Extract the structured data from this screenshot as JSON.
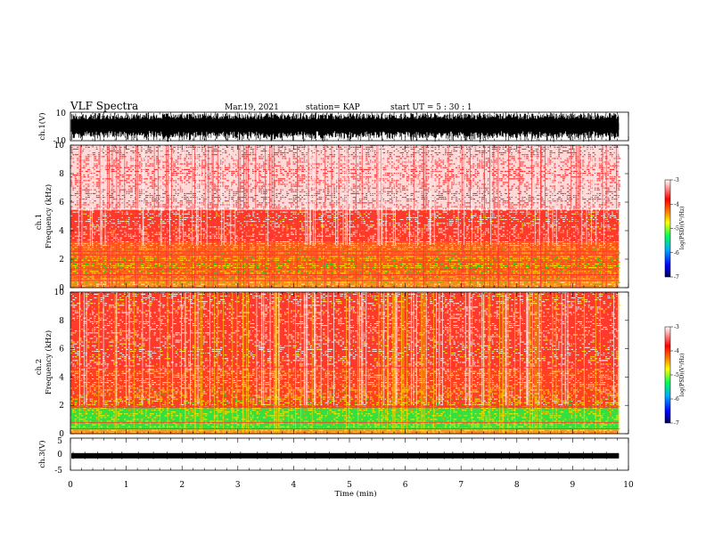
{
  "header": {
    "title": "VLF Spectra",
    "date": "Mar.19, 2021",
    "station": "station= KAP",
    "start": "start  UT =   5 : 30 : 1"
  },
  "colors": {
    "spectrogram_bg": "#ff3a2a",
    "spectrogram_light": "#ffd8d8",
    "spectrogram_yellow": "#ffe600",
    "spectrogram_green": "#22dd33",
    "colorbar": [
      "#000066",
      "#0000ff",
      "#00bbff",
      "#00ff66",
      "#ffff00",
      "#ff6600",
      "#ff0000",
      "#ffffff"
    ]
  },
  "chart_data": [
    {
      "type": "line",
      "panel": "ch.1 waveform",
      "ylabel": "ch.1(V)",
      "ylim": [
        -10,
        10
      ],
      "yticks": [
        "10",
        "-10"
      ],
      "xlim": [
        0,
        10
      ]
    },
    {
      "type": "heatmap",
      "panel": "ch.1 spectrogram",
      "ylabel": "Frequency (kHz)",
      "ylabel2": "ch.1",
      "ylim": [
        0,
        10
      ],
      "yticks": [
        "0",
        "2",
        "4",
        "6",
        "8",
        "10"
      ],
      "xlim": [
        0,
        10
      ],
      "x_end_data": 9.83,
      "colorbar": {
        "label": "log(PSD)(V²/Hz)",
        "range": [
          -7,
          -3
        ],
        "ticks": [
          "-3",
          "-4",
          "-5",
          "-6",
          "-7"
        ]
      },
      "bands": [
        {
          "from": 0.0,
          "to": 0.6,
          "level": "mix"
        },
        {
          "from": 0.6,
          "to": 3.2,
          "level": "yellow"
        },
        {
          "from": 3.2,
          "to": 5.5,
          "level": "red"
        },
        {
          "from": 5.5,
          "to": 10.0,
          "level": "light"
        }
      ]
    },
    {
      "type": "heatmap",
      "panel": "ch.2 spectrogram",
      "ylabel": "Frequency (kHz)",
      "ylabel2": "ch.2",
      "ylim": [
        0,
        10
      ],
      "yticks": [
        "0",
        "2",
        "4",
        "6",
        "8",
        "10"
      ],
      "xlim": [
        0,
        10
      ],
      "x_end_data": 9.83,
      "colorbar": {
        "label": "log(PSD)(V²/Hz)",
        "range": [
          -7,
          -3
        ],
        "ticks": [
          "-3",
          "-4",
          "-5",
          "-6",
          "-7"
        ]
      },
      "bands": [
        {
          "from": 0.0,
          "to": 0.3,
          "level": "mix"
        },
        {
          "from": 0.3,
          "to": 1.8,
          "level": "green"
        },
        {
          "from": 1.8,
          "to": 4.5,
          "level": "red-yellow"
        },
        {
          "from": 4.5,
          "to": 10.0,
          "level": "red"
        }
      ]
    },
    {
      "type": "line",
      "panel": "ch.3 waveform",
      "ylabel": "ch.3(V)",
      "ylim": [
        -5,
        5
      ],
      "yticks": [
        "5",
        "0",
        "-5"
      ],
      "xlim": [
        0,
        10
      ],
      "level": -0.5
    }
  ],
  "xaxis": {
    "label": "Time (min)",
    "ticks": [
      "0",
      "1",
      "2",
      "3",
      "4",
      "5",
      "6",
      "7",
      "8",
      "9",
      "10"
    ]
  }
}
